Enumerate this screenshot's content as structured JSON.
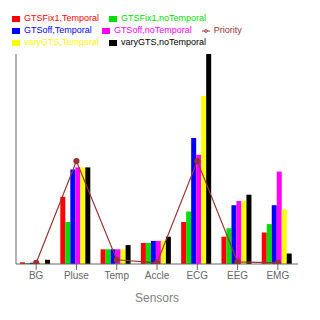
{
  "chart_data": {
    "type": "bar",
    "categories": [
      "BG",
      "Pluse",
      "Temp",
      "Accle",
      "ECG",
      "EEG",
      "EMG"
    ],
    "series": [
      {
        "name": "GTSFix1,Temporal",
        "color": "#ff0000",
        "values": [
          0.8,
          32,
          7,
          10,
          20,
          13,
          15
        ]
      },
      {
        "name": "GTSFix1,noTemporal",
        "color": "#00dd00",
        "values": [
          0.5,
          20,
          7,
          10,
          25,
          17,
          19
        ]
      },
      {
        "name": "GTSoff,Temporal",
        "color": "#0000ff",
        "values": [
          0.6,
          45,
          7,
          11,
          60,
          28,
          28
        ]
      },
      {
        "name": "GTSoff,noTemporal",
        "color": "#ff00ff",
        "values": [
          0.4,
          46,
          7,
          11,
          52,
          30,
          44
        ]
      },
      {
        "name": "varyGTS,Temporal",
        "color": "#ffff00",
        "values": [
          0.4,
          46,
          7,
          11,
          80,
          30,
          26
        ]
      },
      {
        "name": "varyGTS,noTemporal",
        "color": "#000000",
        "values": [
          2.0,
          46,
          9,
          13,
          100,
          33,
          5
        ]
      },
      {
        "name": "Priority",
        "type": "line",
        "color": "#993333",
        "marker": "circle",
        "values": [
          0.5,
          49,
          2,
          0.5,
          49,
          1,
          0.5
        ]
      }
    ],
    "xlabel": "Sensors",
    "ylim": [
      0,
      100
    ],
    "tick_labels": "x",
    "legend": "top"
  }
}
